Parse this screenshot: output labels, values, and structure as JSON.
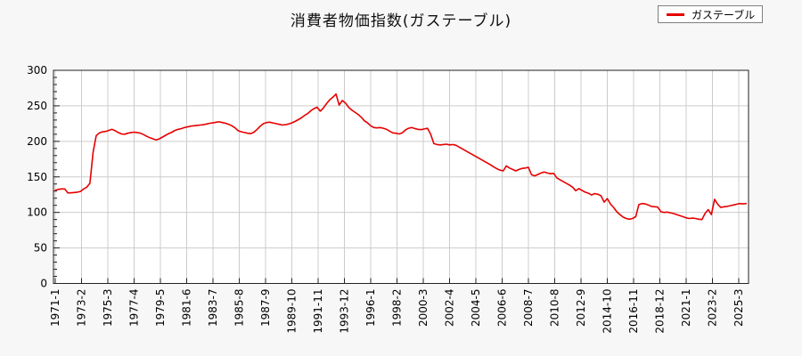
{
  "page": {
    "background": "#f7f7f7"
  },
  "header": {
    "title": "消費者物価指数(ガステーブル)"
  },
  "legend": {
    "label": "ガステーブル",
    "line_color": "#e60000"
  },
  "chart_data": {
    "type": "line",
    "title": "消費者物価指数(ガステーブル)",
    "series_name": "ガステーブル",
    "line_color": "#e60000",
    "grid": true,
    "legend_position": "top-right",
    "ylim": [
      0,
      300
    ],
    "y_ticks": [
      0,
      50,
      100,
      150,
      200,
      250,
      300
    ],
    "y_minor_step": 10,
    "x_start": "1971-01",
    "x_step_months": 3,
    "x_tick_every_months": 25,
    "x_tick_labels": [
      "1971-1",
      "1973-2",
      "1975-3",
      "1977-4",
      "1979-5",
      "1981-6",
      "1983-7",
      "1985-8",
      "1987-9",
      "1989-10",
      "1991-11",
      "1993-12",
      "1996-1",
      "1998-2",
      "2000-3",
      "2002-4",
      "2004-5",
      "2006-6",
      "2008-7",
      "2010-8",
      "2012-9",
      "2014-10",
      "2016-11",
      "2018-12",
      "2021-1",
      "2023-2",
      "2025-3"
    ],
    "values": [
      131,
      132.5,
      133,
      133,
      127.5,
      127.5,
      128,
      128.5,
      129.5,
      133,
      135.5,
      141,
      185,
      208,
      212,
      213.5,
      214,
      215.5,
      217,
      215,
      212.5,
      210.5,
      210,
      211.5,
      212.5,
      213,
      212.5,
      211.5,
      209.5,
      207,
      205,
      203.5,
      202,
      203.5,
      206,
      208.5,
      211,
      213,
      215.5,
      217,
      218,
      219.5,
      220.5,
      221.5,
      222,
      222.5,
      223,
      223.5,
      224.5,
      225.5,
      226,
      227,
      227.5,
      226.5,
      225.5,
      224,
      222,
      219,
      215,
      213.5,
      212.5,
      211.5,
      211,
      213,
      217,
      221.5,
      225,
      226.5,
      227,
      226,
      225,
      224,
      223,
      223.5,
      224.5,
      226,
      228,
      230.5,
      233,
      236.5,
      239,
      243,
      246,
      248,
      242.5,
      247,
      253,
      258.5,
      262,
      266.5,
      251,
      257.5,
      254,
      248,
      244,
      241,
      238,
      234,
      229,
      226,
      222,
      219.5,
      219,
      219.5,
      218.5,
      217,
      214.5,
      212,
      211.5,
      210.5,
      212,
      216,
      218.5,
      219.5,
      218,
      217,
      216.5,
      217.5,
      218.5,
      210,
      197,
      195.5,
      195,
      195.5,
      196,
      195,
      195.5,
      194.5,
      192,
      189.5,
      187,
      184.5,
      182,
      179.5,
      177,
      174.5,
      172,
      169.5,
      167,
      164,
      161.5,
      159.5,
      158.5,
      165.5,
      162.5,
      160.5,
      158.5,
      160.5,
      162,
      162.5,
      163.5,
      153,
      151.5,
      153.5,
      155.5,
      157,
      155.5,
      154.5,
      155,
      148.5,
      146,
      143.5,
      141,
      138.5,
      135.5,
      130.5,
      133.5,
      131,
      128.5,
      127,
      124.5,
      126.5,
      125.5,
      123.5,
      114.5,
      119.5,
      112,
      107,
      101,
      97,
      93.5,
      91.5,
      90.5,
      91.5,
      94,
      111,
      112.5,
      112,
      110.5,
      108.5,
      108,
      107.5,
      101,
      100,
      100.5,
      99.5,
      98.5,
      97,
      95.5,
      94,
      92.5,
      91.5,
      92,
      91.5,
      90.5,
      90,
      98.5,
      104,
      97,
      118.5,
      111.5,
      107,
      108,
      108.5,
      109.5,
      110.5,
      111.5,
      112.5,
      112,
      112.5
    ]
  }
}
